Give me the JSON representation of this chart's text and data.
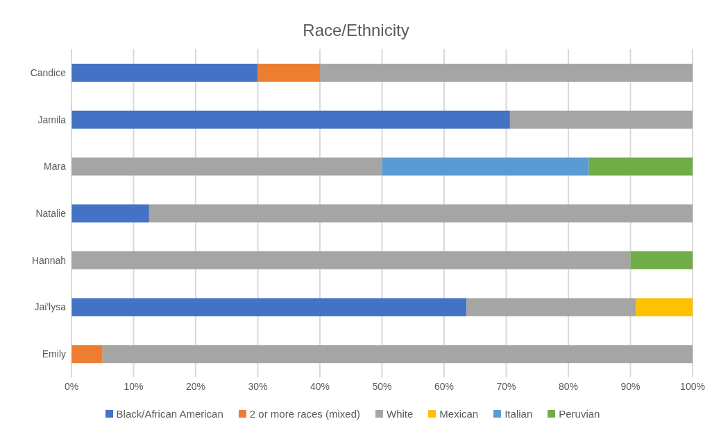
{
  "chart_data": {
    "type": "bar",
    "orientation": "horizontal",
    "stacked": true,
    "title": "Race/Ethnicity",
    "categories": [
      "Candice",
      "Jamila",
      "Mara",
      "Natalie",
      "Hannah",
      "Jai'lysa",
      "Emily"
    ],
    "series": [
      {
        "name": "Black/African American",
        "color": "#4472c4",
        "values": [
          30,
          70.6,
          null,
          12.5,
          null,
          63.6,
          null
        ]
      },
      {
        "name": "2 or more races (mixed)",
        "color": "#ed7d31",
        "values": [
          10,
          null,
          null,
          null,
          null,
          null,
          5
        ]
      },
      {
        "name": "White",
        "color": "#a5a5a5",
        "values": [
          60,
          29.4,
          50,
          87.5,
          90,
          27.3,
          95
        ]
      },
      {
        "name": "Mexican",
        "color": "#ffc000",
        "values": [
          null,
          null,
          null,
          null,
          null,
          9.1,
          null
        ]
      },
      {
        "name": "Italian",
        "color": "#5b9bd5",
        "values": [
          null,
          null,
          33.3,
          null,
          null,
          null,
          null
        ]
      },
      {
        "name": "Peruvian",
        "color": "#70ad47",
        "values": [
          null,
          null,
          16.7,
          null,
          10,
          null,
          null
        ]
      }
    ],
    "xlim": [
      0,
      100
    ],
    "xticks": [
      {
        "value": 0,
        "label": "0%"
      },
      {
        "value": 10,
        "label": "10%"
      },
      {
        "value": 20,
        "label": "20%"
      },
      {
        "value": 30,
        "label": "30%"
      },
      {
        "value": 40,
        "label": "40%"
      },
      {
        "value": 50,
        "label": "50%"
      },
      {
        "value": 60,
        "label": "60%"
      },
      {
        "value": 70,
        "label": "70%"
      },
      {
        "value": 80,
        "label": "80%"
      },
      {
        "value": 90,
        "label": "90%"
      },
      {
        "value": 100,
        "label": "100%"
      }
    ],
    "grid": "x",
    "legend": "bottom"
  }
}
